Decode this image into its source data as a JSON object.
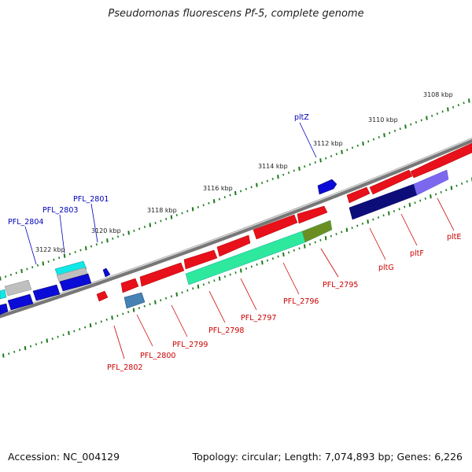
{
  "title": "Pseudomonas fluorescens Pf-5, complete genome",
  "footer": {
    "accession": "Accession: NC_004129",
    "summary": "Topology: circular; Length: 7,074,893 bp; Genes: 6,226"
  },
  "colors": {
    "background": "#ffffff",
    "backbone": "#8a8a8a",
    "forward_gene": "#e8101a",
    "reverse_gene": "#0b0bd8",
    "rna": "#10e8e8",
    "pseudo": "#bfbfbf",
    "tick": "#1a7a1a",
    "forward_label": "#cc0000",
    "reverse_label": "#0000bb",
    "feature_spring": "#2ee89e",
    "feature_olive": "#6b8e23",
    "feature_navy": "#0d0d7a",
    "feature_slate": "#7b68ee",
    "feature_steel": "#4682b4"
  },
  "scale_labels": [
    "3108 kbp",
    "3110 kbp",
    "3112 kbp",
    "3114 kbp",
    "3116 kbp",
    "3118 kbp",
    "3120 kbp",
    "3122 kbp"
  ],
  "gene_labels": {
    "forward": [
      "PFL_2802",
      "PFL_2800",
      "PFL_2799",
      "PFL_2798",
      "PFL_2797",
      "PFL_2796",
      "PFL_2795",
      "pltG",
      "pltF",
      "pltE"
    ],
    "reverse": [
      "pltZ",
      "PFL_2801",
      "PFL_2803",
      "PFL_2804"
    ]
  }
}
